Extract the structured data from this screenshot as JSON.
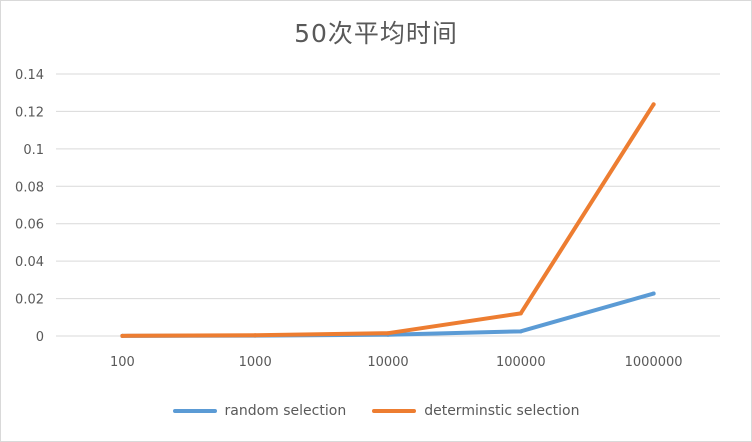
{
  "chart_data": {
    "type": "line",
    "title": "50次平均时间",
    "xlabel": "",
    "ylabel": "",
    "categories": [
      "100",
      "1000",
      "10000",
      "100000",
      "1000000"
    ],
    "ylim": [
      0,
      0.14
    ],
    "yticks": [
      "0",
      "0.02",
      "0.04",
      "0.06",
      "0.08",
      "0.1",
      "0.12",
      "0.14"
    ],
    "grid": true,
    "legend_position": "bottom",
    "series": [
      {
        "name": "random selection",
        "color": "#5b9bd5",
        "values": [
          5e-05,
          0.0002,
          0.0007,
          0.0025,
          0.0227
        ]
      },
      {
        "name": "determinstic selection",
        "color": "#ed7d31",
        "values": [
          0.0001,
          0.0004,
          0.0015,
          0.0121,
          0.1238
        ]
      }
    ]
  }
}
